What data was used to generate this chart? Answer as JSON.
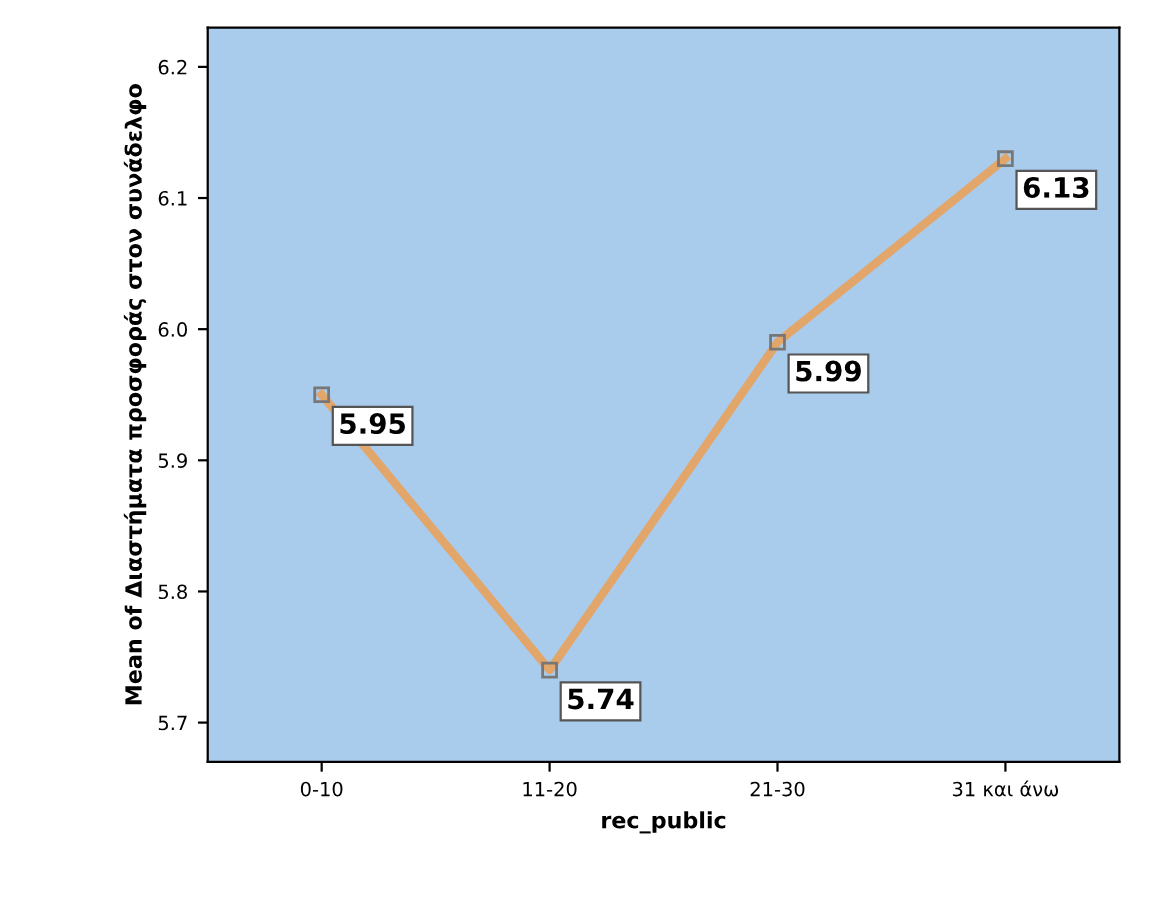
{
  "chart_data": {
    "type": "line",
    "categories": [
      "0-10",
      "11-20",
      "21-30",
      "31 και άνω"
    ],
    "series": [
      {
        "color": "#e3a66a",
        "values": [
          5.95,
          5.74,
          5.99,
          6.13
        ]
      }
    ],
    "xlabel": "rec_public",
    "ylabel": "Mean of Διαστήματα προσφοράς στον συνάδελφο",
    "ylim": [
      5.67,
      6.23
    ],
    "yticks": [
      5.7,
      5.8,
      5.9,
      {
        "value": 6.0,
        "label": "6.0"
      },
      6.1,
      6.2
    ],
    "data_labels": true,
    "marker": "square",
    "grid": false,
    "legend": false
  }
}
